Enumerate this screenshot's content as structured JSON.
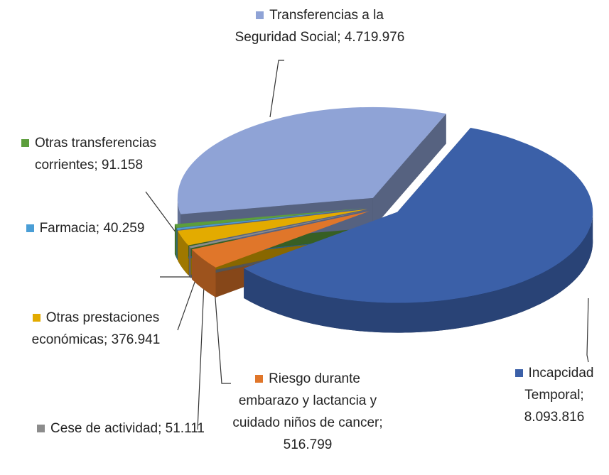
{
  "chart_data": {
    "type": "pie",
    "categories": [
      "Incapcidad Temporal;",
      "Riesgo durante embarazo y lactancia y cuidado niños de cancer;",
      "Cese de actividad;",
      "Otras prestaciones económicas;",
      "Farmacia;",
      "Otras transferencias corrientes;",
      "Transferencias a la Seguridad Social;"
    ],
    "values": [
      8093816,
      516799,
      51111,
      376941,
      40259,
      91158,
      4719976
    ],
    "value_labels": [
      "8.093.816",
      "516.799",
      "51.111",
      "376.941",
      "40.259",
      "91.158",
      "4.719.976"
    ],
    "colors": [
      "#3b60a8",
      "#e0762a",
      "#8c8c8c",
      "#e3ab00",
      "#4a9ed6",
      "#5c9e3c",
      "#8fa3d6"
    ]
  }
}
